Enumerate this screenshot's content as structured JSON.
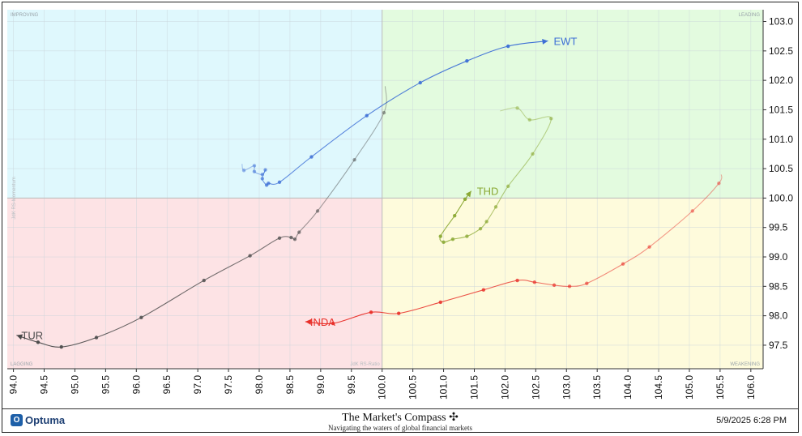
{
  "chart_data": {
    "type": "scatter",
    "title": "",
    "xlabel": "JdK RS-Ratio",
    "ylabel": "JdK RS-Momentum",
    "xlim": [
      93.9,
      106.2
    ],
    "ylim": [
      97.1,
      103.2
    ],
    "x_ticks": [
      "94.0",
      "94.5",
      "95.0",
      "95.5",
      "96.0",
      "96.5",
      "97.0",
      "97.5",
      "98.0",
      "98.5",
      "99.0",
      "99.5",
      "100.0",
      "100.5",
      "101.0",
      "101.5",
      "102.0",
      "102.5",
      "103.0",
      "103.5",
      "104.0",
      "104.5",
      "105.0",
      "105.5",
      "106.0"
    ],
    "y_ticks": [
      "97.5",
      "98.0",
      "98.5",
      "99.0",
      "99.5",
      "100.0",
      "100.5",
      "101.0",
      "101.5",
      "102.0",
      "102.5",
      "103.0"
    ],
    "center": {
      "x": 100.0,
      "y": 100.0
    },
    "quadrants": {
      "improving": {
        "label": "IMPROVING",
        "color": "#dff8fd"
      },
      "leading": {
        "label": "LEADING",
        "color": "#e3fbdf"
      },
      "lagging": {
        "label": "LAGGING",
        "color": "#fde3e5"
      },
      "weakening": {
        "label": "WEAKENING",
        "color": "#fefbdc"
      }
    },
    "series": [
      {
        "name": "EWT",
        "color": "#3d6fd6",
        "points": [
          [
            97.72,
            100.58
          ],
          [
            97.75,
            100.47
          ],
          [
            97.92,
            100.55
          ],
          [
            97.92,
            100.45
          ],
          [
            98.05,
            100.4
          ],
          [
            98.1,
            100.48
          ],
          [
            98.05,
            100.33
          ],
          [
            98.12,
            100.22
          ],
          [
            98.15,
            100.25
          ],
          [
            98.33,
            100.27
          ],
          [
            98.85,
            100.7
          ],
          [
            99.75,
            101.4
          ],
          [
            100.62,
            101.96
          ],
          [
            101.38,
            102.33
          ],
          [
            102.05,
            102.58
          ],
          [
            102.7,
            102.67
          ]
        ]
      },
      {
        "name": "TUR",
        "color": "#4a4a4a",
        "points": [
          [
            100.05,
            101.9
          ],
          [
            100.03,
            101.45
          ],
          [
            99.55,
            100.65
          ],
          [
            98.95,
            99.78
          ],
          [
            98.65,
            99.42
          ],
          [
            98.58,
            99.3
          ],
          [
            98.52,
            99.33
          ],
          [
            98.33,
            99.32
          ],
          [
            97.85,
            99.02
          ],
          [
            97.1,
            98.6
          ],
          [
            96.08,
            97.97
          ],
          [
            95.35,
            97.63
          ],
          [
            94.78,
            97.47
          ],
          [
            94.4,
            97.55
          ],
          [
            94.05,
            97.67
          ]
        ]
      },
      {
        "name": "THD",
        "color": "#8aa833",
        "points": [
          [
            101.92,
            101.48
          ],
          [
            102.2,
            101.53
          ],
          [
            102.4,
            101.33
          ],
          [
            102.75,
            101.35
          ],
          [
            102.45,
            100.75
          ],
          [
            102.05,
            100.2
          ],
          [
            101.85,
            99.85
          ],
          [
            101.7,
            99.6
          ],
          [
            101.6,
            99.48
          ],
          [
            101.38,
            99.35
          ],
          [
            101.15,
            99.3
          ],
          [
            101.0,
            99.25
          ],
          [
            100.95,
            99.35
          ],
          [
            101.18,
            99.7
          ],
          [
            101.35,
            99.98
          ],
          [
            101.45,
            100.12
          ]
        ]
      },
      {
        "name": "INDA",
        "color": "#e8302a",
        "points": [
          [
            105.52,
            100.4
          ],
          [
            105.48,
            100.25
          ],
          [
            105.05,
            99.78
          ],
          [
            104.35,
            99.17
          ],
          [
            103.92,
            98.88
          ],
          [
            103.33,
            98.55
          ],
          [
            103.05,
            98.5
          ],
          [
            102.8,
            98.52
          ],
          [
            102.48,
            98.57
          ],
          [
            102.2,
            98.6
          ],
          [
            101.65,
            98.44
          ],
          [
            100.95,
            98.23
          ],
          [
            100.27,
            98.04
          ],
          [
            99.82,
            98.06
          ],
          [
            99.2,
            97.87
          ],
          [
            98.75,
            97.9
          ]
        ]
      }
    ]
  },
  "footer": {
    "brand": "Optuma",
    "title": "The Market's Compass",
    "subtitle": "Navigating the waters of global financial markets",
    "timestamp": "5/9/2025 6:28 PM"
  }
}
